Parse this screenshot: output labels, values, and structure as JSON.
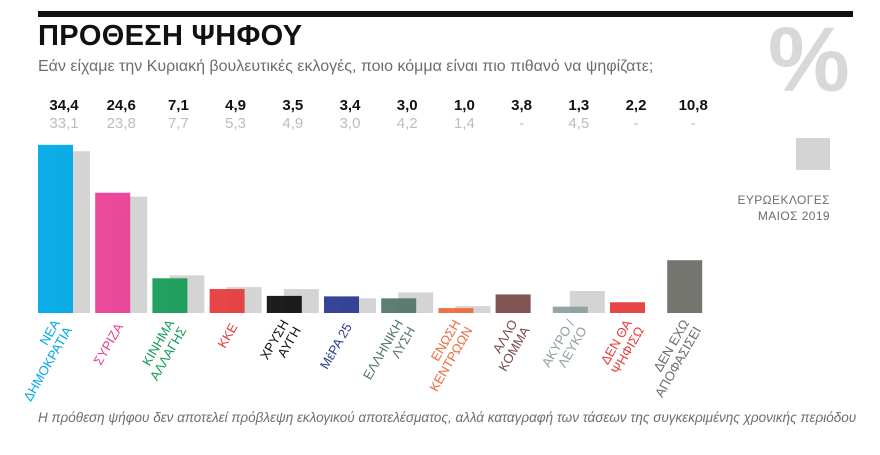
{
  "header": {
    "title": "ΠΡΟΘΕΣΗ ΨΗΦΟΥ",
    "subtitle": "Εάν είχαμε την Κυριακή βουλευτικές εκλογές, ποιο κόμμα είναι πιο πιθανό να ψηφίζατε;",
    "percent_symbol": "%"
  },
  "legend": {
    "line1": "ΕΥΡΩΕΚΛΟΓΕΣ",
    "line2": "ΜΑΙΟΣ 2019",
    "color": "#d4d4d4"
  },
  "footnote": "Η πρόθεση ψήφου δεν αποτελεί πρόβλεψη εκλογικού αποτελέσματος, αλλά καταγραφή των τάσεων της συγκεκριμένης χρονικής περιόδου",
  "chart_data": {
    "type": "bar",
    "ylim": [
      0,
      36
    ],
    "categories": [
      [
        "ΝΕΑ",
        "ΔΗΜΟΚΡΑΤΙΑ"
      ],
      [
        "ΣΥΡΙΖΑ"
      ],
      [
        "ΚΙΝΗΜΑ",
        "ΑΛΛΑΓΗΣ"
      ],
      [
        "ΚΚΕ"
      ],
      [
        "ΧΡΥΣΗ",
        "ΑΥΓΗ"
      ],
      [
        "ΜέΡΑ 25"
      ],
      [
        "ΕΛΛΗΝΙΚΗ",
        "ΛΥΣΗ"
      ],
      [
        "ΕΝΩΣΗ",
        "ΚΕΝΤΡΩΩΝ"
      ],
      [
        "ΑΛΛΟ",
        "ΚΟΜΜΑ"
      ],
      [
        "ΑΚΥΡΟ /",
        "ΛΕΥΚΟ"
      ],
      [
        "ΔΕΝ ΘΑ",
        "ΨΗΦΙΣΩ"
      ],
      [
        "ΔΕΝ ΕΧΩ",
        "ΑΠΟΦΑΣΙΣΕΙ"
      ]
    ],
    "current": {
      "values": [
        34.4,
        24.6,
        7.1,
        4.9,
        3.5,
        3.4,
        3.0,
        1.0,
        3.8,
        1.3,
        2.2,
        10.8
      ],
      "labels": [
        "34,4",
        "24,6",
        "7,1",
        "4,9",
        "3,5",
        "3,4",
        "3,0",
        "1,0",
        "3,8",
        "1,3",
        "2,2",
        "10,8"
      ]
    },
    "previous": {
      "name": "ΕΥΡΩΕΚΛΟΓΕΣ ΜΑΙΟΣ 2019",
      "values": [
        33.1,
        23.8,
        7.7,
        5.3,
        4.9,
        3.0,
        4.2,
        1.4,
        null,
        4.5,
        null,
        null
      ],
      "labels": [
        "33,1",
        "23,8",
        "7,7",
        "5,3",
        "4,9",
        "3,0",
        "4,2",
        "1,4",
        "-",
        "4,5",
        "-",
        "-"
      ]
    },
    "colors": [
      "#00a9e6",
      "#ea3f96",
      "#169c57",
      "#e63c3c",
      "#111111",
      "#2b3b8f",
      "#53776e",
      "#ec6c3c",
      "#7b4b4b",
      "#8f9fa0",
      "#e63c3c",
      "#6c6e66"
    ],
    "label_colors": [
      "#00a9e6",
      "#ea3f96",
      "#169c57",
      "#e63c3c",
      "#111111",
      "#2b3b8f",
      "#53776e",
      "#ec6c3c",
      "#7b4b4b",
      "#8f9fa0",
      "#e63c3c",
      "#6c6e66"
    ],
    "previous_color": "#d4d4d4"
  }
}
